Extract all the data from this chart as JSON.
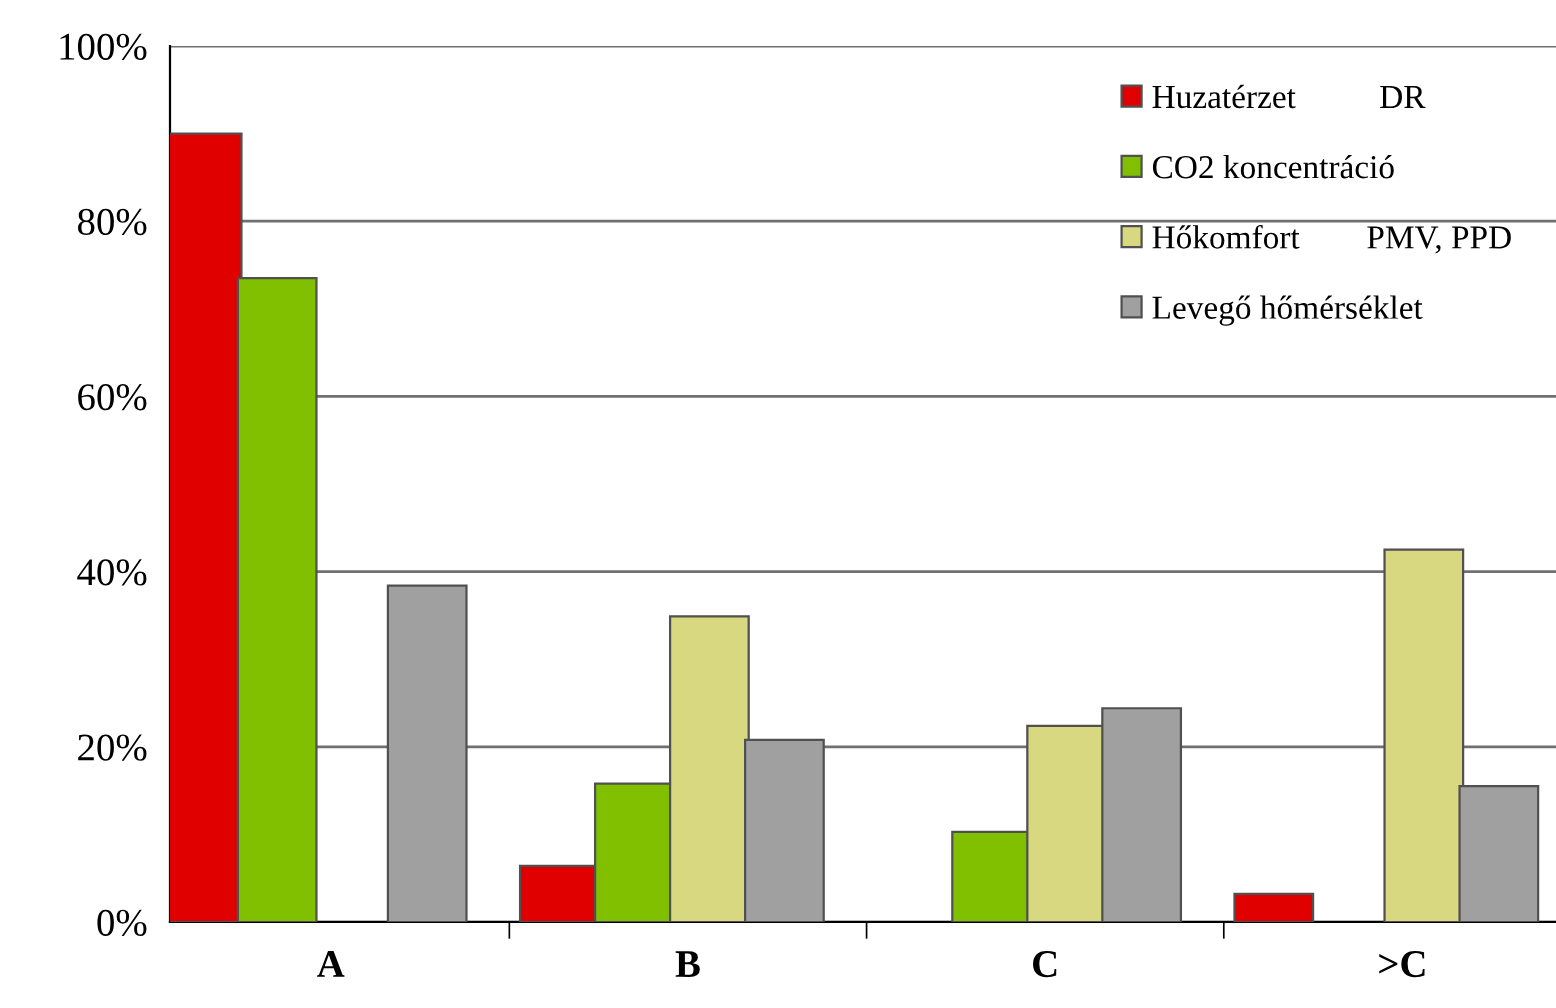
{
  "chart_data": {
    "type": "bar",
    "categories": [
      "A",
      "B",
      "C",
      ">C"
    ],
    "series": [
      {
        "name": "Huzatérzet          DR",
        "color": "#e00000",
        "values": [
          90,
          6.4,
          null,
          3.2
        ]
      },
      {
        "name": "CO2 koncentráció",
        "color": "#80c000",
        "values": [
          73.5,
          15.8,
          10.3,
          null
        ]
      },
      {
        "name": "Hőkomfort        PMV, PPD",
        "color": "#d8d880",
        "values": [
          null,
          34.9,
          22.4,
          42.5
        ]
      },
      {
        "name": "Levegő hőmérséklet",
        "color": "#a0a0a0",
        "values": [
          38.4,
          20.8,
          24.4,
          15.5
        ]
      }
    ],
    "ylim": [
      0,
      100
    ],
    "yticks": [
      {
        "value": 0,
        "label": "0%"
      },
      {
        "value": 20,
        "label": "20%"
      },
      {
        "value": 40,
        "label": "40%"
      },
      {
        "value": 60,
        "label": "60%"
      },
      {
        "value": 80,
        "label": "80%"
      },
      {
        "value": 100,
        "label": "100%"
      }
    ],
    "grid": "y",
    "legend": "top right"
  }
}
